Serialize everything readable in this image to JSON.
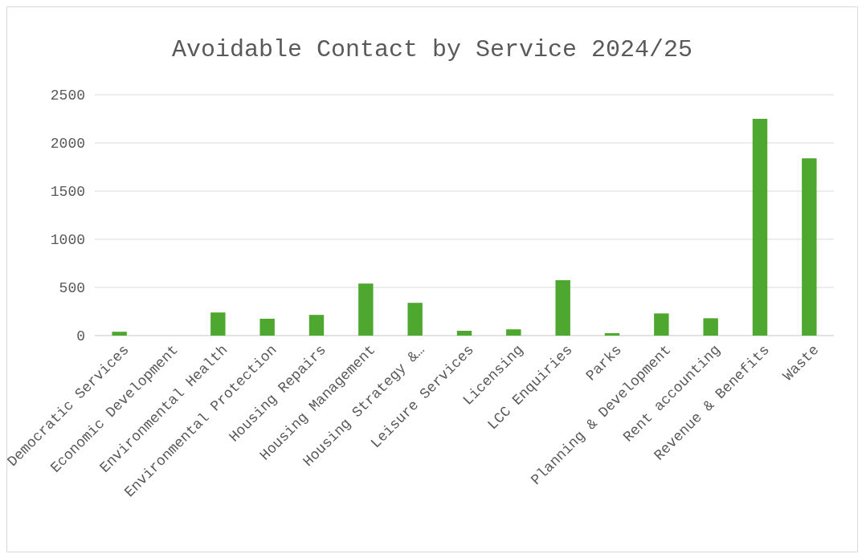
{
  "chart_data": {
    "type": "bar",
    "title": "Avoidable Contact by Service 2024/25",
    "categories": [
      "Democratic Services",
      "Economic Development",
      "Environmental Health",
      "Environmental Protection",
      "Housing Repairs",
      "Housing Management",
      "Housing Strategy &…",
      "Leisure Services",
      "Licensing",
      "LCC Enquiries",
      "Parks",
      "Planning & Development",
      "Rent accounting",
      "Revenue & Benefits",
      "Waste"
    ],
    "values": [
      40,
      0,
      240,
      175,
      215,
      540,
      340,
      50,
      65,
      575,
      25,
      230,
      180,
      2250,
      1840
    ],
    "color": "#4ea72e",
    "ylim": [
      0,
      2500
    ],
    "yticks": [
      0,
      500,
      1000,
      1500,
      2000,
      2500
    ],
    "grid": "y"
  }
}
